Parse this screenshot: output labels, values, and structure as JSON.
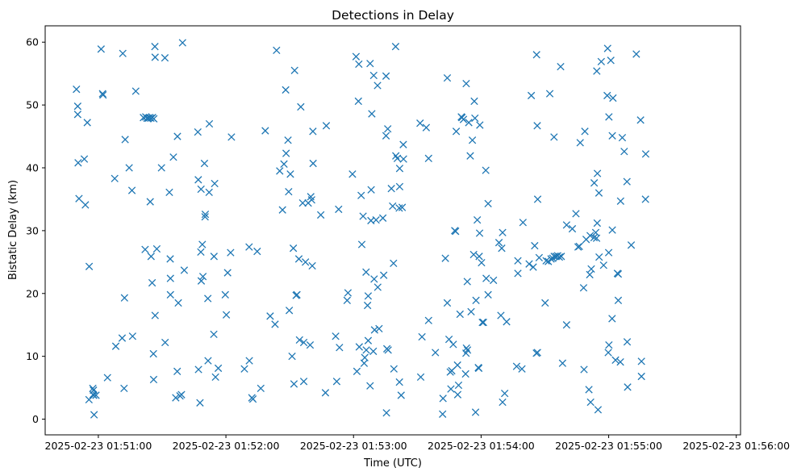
{
  "chart_data": {
    "type": "scatter",
    "title": "Detections in Delay",
    "xlabel": "Time (UTC)",
    "ylabel": "Bistatic Delay (km)",
    "marker": "x",
    "color": "#1f77b4",
    "grid": false,
    "legend": false,
    "x_ticks": [
      "2025-02-23 01:51:00",
      "2025-02-23 01:52:00",
      "2025-02-23 01:53:00",
      "2025-02-23 01:54:00",
      "2025-02-23 01:55:00",
      "2025-02-23 01:56:00"
    ],
    "y_ticks": [
      "0",
      "10",
      "20",
      "30",
      "40",
      "50",
      "60"
    ],
    "xlim_seconds_after_015100": [
      -25.0,
      302.0
    ],
    "ylim": [
      -2.5,
      62.6
    ],
    "points_seconds_after_015100": [
      [
        -10.3,
        52.5
      ],
      [
        -9.7,
        49.8
      ],
      [
        -9.7,
        48.5
      ],
      [
        -9.5,
        40.8
      ],
      [
        -9.1,
        35.1
      ],
      [
        -6.6,
        41.4
      ],
      [
        -6.1,
        34.1
      ],
      [
        -5.2,
        47.2
      ],
      [
        -4.3,
        24.3
      ],
      [
        -4.4,
        3.1
      ],
      [
        -2.6,
        4.9
      ],
      [
        -2.3,
        4.6
      ],
      [
        -2.2,
        3.8
      ],
      [
        -2.5,
        3.9
      ],
      [
        -2.0,
        0.7
      ],
      [
        -1.1,
        3.8
      ],
      [
        1.3,
        58.9
      ],
      [
        2.0,
        51.8
      ],
      [
        2.2,
        51.6
      ],
      [
        4.3,
        6.6
      ],
      [
        7.7,
        38.3
      ],
      [
        8.2,
        11.6
      ],
      [
        11.2,
        12.9
      ],
      [
        11.5,
        58.2
      ],
      [
        12.1,
        4.9
      ],
      [
        12.3,
        19.3
      ],
      [
        12.6,
        44.5
      ],
      [
        14.5,
        40.0
      ],
      [
        15.8,
        36.4
      ],
      [
        16.1,
        13.2
      ],
      [
        17.6,
        52.2
      ],
      [
        21.2,
        48.0
      ],
      [
        22.3,
        48.1
      ],
      [
        22.0,
        27.0
      ],
      [
        22.9,
        47.9
      ],
      [
        23.5,
        47.9
      ],
      [
        24.1,
        48.0
      ],
      [
        24.7,
        47.9
      ],
      [
        25.5,
        48.0
      ],
      [
        26.1,
        47.8
      ],
      [
        24.4,
        34.6
      ],
      [
        24.8,
        25.9
      ],
      [
        25.3,
        21.7
      ],
      [
        25.9,
        10.4
      ],
      [
        26.0,
        6.3
      ],
      [
        26.6,
        59.3
      ],
      [
        26.7,
        57.6
      ],
      [
        26.7,
        16.5
      ],
      [
        27.5,
        27.1
      ],
      [
        29.7,
        40.0
      ],
      [
        31.3,
        57.5
      ],
      [
        31.4,
        12.2
      ],
      [
        33.4,
        36.1
      ],
      [
        33.8,
        25.5
      ],
      [
        33.9,
        19.8
      ],
      [
        33.9,
        22.4
      ],
      [
        35.3,
        41.7
      ],
      [
        36.4,
        3.4
      ],
      [
        37.1,
        7.6
      ],
      [
        37.2,
        45.0
      ],
      [
        37.6,
        18.5
      ],
      [
        38.4,
        3.7
      ],
      [
        39.1,
        3.9
      ],
      [
        39.6,
        59.9
      ],
      [
        40.4,
        23.7
      ],
      [
        46.8,
        45.7
      ],
      [
        47.0,
        38.1
      ],
      [
        47.1,
        7.9
      ],
      [
        47.8,
        2.6
      ],
      [
        48.2,
        26.6
      ],
      [
        48.3,
        36.6
      ],
      [
        48.4,
        22.0
      ],
      [
        48.9,
        27.8
      ],
      [
        49.2,
        22.7
      ],
      [
        49.9,
        40.7
      ],
      [
        50.2,
        32.2
      ],
      [
        50.3,
        32.6
      ],
      [
        51.5,
        19.2
      ],
      [
        51.6,
        9.3
      ],
      [
        52.1,
        36.1
      ],
      [
        52.2,
        47.0
      ],
      [
        54.4,
        25.9
      ],
      [
        54.3,
        13.5
      ],
      [
        54.7,
        37.5
      ],
      [
        55.1,
        6.7
      ],
      [
        56.4,
        8.1
      ],
      [
        59.7,
        19.8
      ],
      [
        60.2,
        16.6
      ],
      [
        60.8,
        23.3
      ],
      [
        62.2,
        26.5
      ],
      [
        62.6,
        44.9
      ],
      [
        68.7,
        8.0
      ],
      [
        70.9,
        27.4
      ],
      [
        71.0,
        9.3
      ],
      [
        72.2,
        3.4
      ],
      [
        72.7,
        3.2
      ],
      [
        74.7,
        26.7
      ],
      [
        76.4,
        4.9
      ],
      [
        78.5,
        45.9
      ],
      [
        80.8,
        16.4
      ],
      [
        83.1,
        15.1
      ],
      [
        83.8,
        58.7
      ],
      [
        85.3,
        39.5
      ],
      [
        86.6,
        33.3
      ],
      [
        87.3,
        40.6
      ],
      [
        88.1,
        52.4
      ],
      [
        88.3,
        42.3
      ],
      [
        89.2,
        44.4
      ],
      [
        89.5,
        36.2
      ],
      [
        89.8,
        17.3
      ],
      [
        90.3,
        39.0
      ],
      [
        91.1,
        10.0
      ],
      [
        91.7,
        27.2
      ],
      [
        92.0,
        5.6
      ],
      [
        92.3,
        55.5
      ],
      [
        93.0,
        19.7
      ],
      [
        93.4,
        19.8
      ],
      [
        94.3,
        25.5
      ],
      [
        94.6,
        12.6
      ],
      [
        95.2,
        49.7
      ],
      [
        96.6,
        12.2
      ],
      [
        96.1,
        34.4
      ],
      [
        96.6,
        6.0
      ],
      [
        97.4,
        25.0
      ],
      [
        98.7,
        34.4
      ],
      [
        99.6,
        11.8
      ],
      [
        99.9,
        35.4
      ],
      [
        100.3,
        34.9
      ],
      [
        100.6,
        24.4
      ],
      [
        100.9,
        45.8
      ],
      [
        101.0,
        40.7
      ],
      [
        104.6,
        32.5
      ],
      [
        107.2,
        46.7
      ],
      [
        106.8,
        4.2
      ],
      [
        112.1,
        6.0
      ],
      [
        111.6,
        13.2
      ],
      [
        113.4,
        11.4
      ],
      [
        113.0,
        33.4
      ],
      [
        117.0,
        18.9
      ],
      [
        117.4,
        20.1
      ],
      [
        119.5,
        39.0
      ],
      [
        121.2,
        57.7
      ],
      [
        121.6,
        7.6
      ],
      [
        122.3,
        50.6
      ],
      [
        122.5,
        56.5
      ],
      [
        122.7,
        11.5
      ],
      [
        123.6,
        35.6
      ],
      [
        123.9,
        27.8
      ],
      [
        124.5,
        32.3
      ],
      [
        125.0,
        8.9
      ],
      [
        125.3,
        9.8
      ],
      [
        125.9,
        23.4
      ],
      [
        126.0,
        11.0
      ],
      [
        126.6,
        18.1
      ],
      [
        126.9,
        19.6
      ],
      [
        126.9,
        12.5
      ],
      [
        127.8,
        5.3
      ],
      [
        127.8,
        56.6
      ],
      [
        128.2,
        31.6
      ],
      [
        128.3,
        36.5
      ],
      [
        128.6,
        48.6
      ],
      [
        129.3,
        10.8
      ],
      [
        129.5,
        54.7
      ],
      [
        129.9,
        14.2
      ],
      [
        129.7,
        22.3
      ],
      [
        130.6,
        31.7
      ],
      [
        131.4,
        21.0
      ],
      [
        131.3,
        53.1
      ],
      [
        132.0,
        14.4
      ],
      [
        133.8,
        32.0
      ],
      [
        134.2,
        22.9
      ],
      [
        135.3,
        54.6
      ],
      [
        135.3,
        45.1
      ],
      [
        135.7,
        11.2
      ],
      [
        135.5,
        1.0
      ],
      [
        136.1,
        46.2
      ],
      [
        136.3,
        11.0
      ],
      [
        137.8,
        36.7
      ],
      [
        138.8,
        24.8
      ],
      [
        138.4,
        33.9
      ],
      [
        139.0,
        8.0
      ],
      [
        139.8,
        59.3
      ],
      [
        139.9,
        41.9
      ],
      [
        140.6,
        41.5
      ],
      [
        141.6,
        5.9
      ],
      [
        141.7,
        37.0
      ],
      [
        141.7,
        39.9
      ],
      [
        141.5,
        33.6
      ],
      [
        142.9,
        33.7
      ],
      [
        142.4,
        3.8
      ],
      [
        143.4,
        43.7
      ],
      [
        143.5,
        41.4
      ],
      [
        151.3,
        47.1
      ],
      [
        151.6,
        6.7
      ],
      [
        152.2,
        13.1
      ],
      [
        154.2,
        46.4
      ],
      [
        155.3,
        41.5
      ],
      [
        155.3,
        15.7
      ],
      [
        158.5,
        10.6
      ],
      [
        161.9,
        0.8
      ],
      [
        162.1,
        3.3
      ],
      [
        163.2,
        25.6
      ],
      [
        164.1,
        54.3
      ],
      [
        164.1,
        18.5
      ],
      [
        164.9,
        12.7
      ],
      [
        165.5,
        7.5
      ],
      [
        165.8,
        4.8
      ],
      [
        166.2,
        7.7
      ],
      [
        166.9,
        11.9
      ],
      [
        167.6,
        30.0
      ],
      [
        168.0,
        29.9
      ],
      [
        168.3,
        45.8
      ],
      [
        168.9,
        8.6
      ],
      [
        169.0,
        3.9
      ],
      [
        169.4,
        5.4
      ],
      [
        170.1,
        16.7
      ],
      [
        170.7,
        48.1
      ],
      [
        171.0,
        48.0
      ],
      [
        171.7,
        47.7
      ],
      [
        172.7,
        7.2
      ],
      [
        172.9,
        10.5
      ],
      [
        173.1,
        11.3
      ],
      [
        173.5,
        21.9
      ],
      [
        173.6,
        11.0
      ],
      [
        173.0,
        53.4
      ],
      [
        174.2,
        47.2
      ],
      [
        174.9,
        41.9
      ],
      [
        175.3,
        17.1
      ],
      [
        175.9,
        44.4
      ],
      [
        176.5,
        26.2
      ],
      [
        176.8,
        50.6
      ],
      [
        177.1,
        47.9
      ],
      [
        177.6,
        18.9
      ],
      [
        177.4,
        1.1
      ],
      [
        178.2,
        31.7
      ],
      [
        178.7,
        8.2
      ],
      [
        178.9,
        8.1
      ],
      [
        179.1,
        25.9
      ],
      [
        179.4,
        46.8
      ],
      [
        179.3,
        29.6
      ],
      [
        180.2,
        24.9
      ],
      [
        180.6,
        15.4
      ],
      [
        181.1,
        15.4
      ],
      [
        182.2,
        39.6
      ],
      [
        182.4,
        22.4
      ],
      [
        183.3,
        34.3
      ],
      [
        183.3,
        19.8
      ],
      [
        185.8,
        22.1
      ],
      [
        188.4,
        28.1
      ],
      [
        189.3,
        16.5
      ],
      [
        189.7,
        27.2
      ],
      [
        190.1,
        29.7
      ],
      [
        190.1,
        2.7
      ],
      [
        191.1,
        4.1
      ],
      [
        192.0,
        15.5
      ],
      [
        196.7,
        8.4
      ],
      [
        197.3,
        23.2
      ],
      [
        197.3,
        25.2
      ],
      [
        199.2,
        8.0
      ],
      [
        199.7,
        31.3
      ],
      [
        202.6,
        24.7
      ],
      [
        203.6,
        51.5
      ],
      [
        204.5,
        24.2
      ],
      [
        205.2,
        27.6
      ],
      [
        206.1,
        58.0
      ],
      [
        206.0,
        10.5
      ],
      [
        206.4,
        46.7
      ],
      [
        206.6,
        35.0
      ],
      [
        206.5,
        10.6
      ],
      [
        207.3,
        25.7
      ],
      [
        210.1,
        18.5
      ],
      [
        210.6,
        25.2
      ],
      [
        211.6,
        25.1
      ],
      [
        212.3,
        51.8
      ],
      [
        212.9,
        25.5
      ],
      [
        213.7,
        25.6
      ],
      [
        214.4,
        25.9
      ],
      [
        214.3,
        44.9
      ],
      [
        215.3,
        25.9
      ],
      [
        216.0,
        26.0
      ],
      [
        216.8,
        25.8
      ],
      [
        217.4,
        56.1
      ],
      [
        217.7,
        25.9
      ],
      [
        218.3,
        8.9
      ],
      [
        220.2,
        30.9
      ],
      [
        220.2,
        15.0
      ],
      [
        222.9,
        30.3
      ],
      [
        224.6,
        32.7
      ],
      [
        225.6,
        27.4
      ],
      [
        226.2,
        27.5
      ],
      [
        226.6,
        44.0
      ],
      [
        228.2,
        20.9
      ],
      [
        228.4,
        7.9
      ],
      [
        228.8,
        45.8
      ],
      [
        229.4,
        28.6
      ],
      [
        230.7,
        4.7
      ],
      [
        231.1,
        23.0
      ],
      [
        231.3,
        29.2
      ],
      [
        231.5,
        2.7
      ],
      [
        231.8,
        23.9
      ],
      [
        233.1,
        28.9
      ],
      [
        233.2,
        37.6
      ],
      [
        233.9,
        29.7
      ],
      [
        234.4,
        55.4
      ],
      [
        234.3,
        28.8
      ],
      [
        234.6,
        31.2
      ],
      [
        234.7,
        39.1
      ],
      [
        235.0,
        1.5
      ],
      [
        235.4,
        36.0
      ],
      [
        235.5,
        25.8
      ],
      [
        236.5,
        56.9
      ],
      [
        237.6,
        24.5
      ],
      [
        239.3,
        51.5
      ],
      [
        239.5,
        59.0
      ],
      [
        239.8,
        10.6
      ],
      [
        240.0,
        26.5
      ],
      [
        240.1,
        11.8
      ],
      [
        240.1,
        48.1
      ],
      [
        241.0,
        57.1
      ],
      [
        241.7,
        45.1
      ],
      [
        241.7,
        30.1
      ],
      [
        241.6,
        16.0
      ],
      [
        242.0,
        51.1
      ],
      [
        243.2,
        9.4
      ],
      [
        244.1,
        23.2
      ],
      [
        244.5,
        18.9
      ],
      [
        244.5,
        23.1
      ],
      [
        245.5,
        9.1
      ],
      [
        245.6,
        34.7
      ],
      [
        246.4,
        44.8
      ],
      [
        247.3,
        42.6
      ],
      [
        248.6,
        37.8
      ],
      [
        248.9,
        5.1
      ],
      [
        248.7,
        12.3
      ],
      [
        250.6,
        27.7
      ],
      [
        253.0,
        58.1
      ],
      [
        255.0,
        47.6
      ],
      [
        255.4,
        6.8
      ],
      [
        255.4,
        9.2
      ],
      [
        257.3,
        35.0
      ],
      [
        257.4,
        42.2
      ]
    ]
  }
}
